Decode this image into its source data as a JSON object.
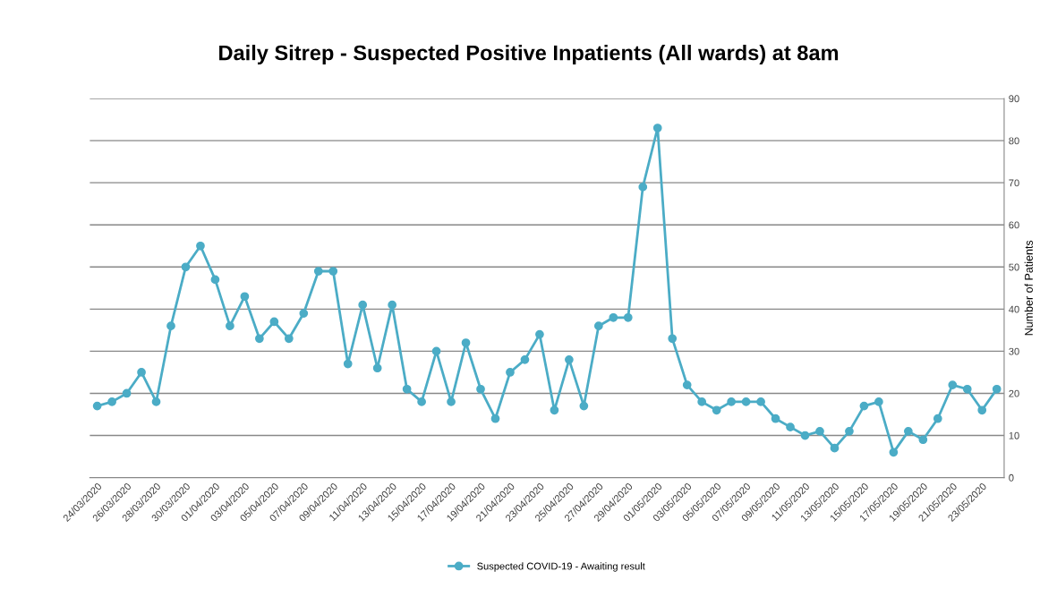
{
  "chart_data": {
    "type": "line",
    "title": "Daily Sitrep - Suspected Positive Inpatients (All wards) at 8am",
    "ylabel": "Number of Patients",
    "categories": [
      "24/03/2020",
      null,
      "26/03/2020",
      null,
      "28/03/2020",
      null,
      "30/03/2020",
      null,
      "01/04/2020",
      null,
      "03/04/2020",
      null,
      "05/04/2020",
      null,
      "07/04/2020",
      null,
      "09/04/2020",
      null,
      "11/04/2020",
      null,
      "13/04/2020",
      null,
      "15/04/2020",
      null,
      "17/04/2020",
      null,
      "19/04/2020",
      null,
      "21/04/2020",
      null,
      "23/04/2020",
      null,
      "25/04/2020",
      null,
      "27/04/2020",
      null,
      "29/04/2020",
      null,
      "01/05/2020",
      null,
      "03/05/2020",
      null,
      "05/05/2020",
      null,
      "07/05/2020",
      null,
      "09/05/2020",
      null,
      "11/05/2020",
      null,
      "13/05/2020",
      null,
      "15/05/2020",
      null,
      "17/05/2020",
      null,
      "19/05/2020",
      null,
      "21/05/2020",
      null,
      "23/05/2020",
      null
    ],
    "series": [
      {
        "name": "Suspected COVID-19 - Awaiting result",
        "color": "#4bacc6",
        "values": [
          17,
          18,
          20,
          25,
          18,
          36,
          50,
          55,
          47,
          36,
          43,
          33,
          37,
          33,
          39,
          49,
          49,
          27,
          41,
          26,
          41,
          21,
          18,
          30,
          18,
          32,
          21,
          14,
          25,
          28,
          34,
          16,
          28,
          17,
          36,
          38,
          38,
          69,
          83,
          33,
          22,
          18,
          16,
          18,
          18,
          18,
          14,
          12,
          10,
          11,
          7,
          11,
          17,
          18,
          6,
          11,
          9,
          14,
          22,
          21,
          16,
          21
        ]
      }
    ],
    "ylim": [
      0,
      90
    ],
    "yticks": [
      0,
      10,
      20,
      30,
      40,
      50,
      60,
      70,
      80,
      90
    ],
    "grid": "y",
    "legend": "bottom",
    "marker": "circle",
    "line_style": "solid"
  }
}
